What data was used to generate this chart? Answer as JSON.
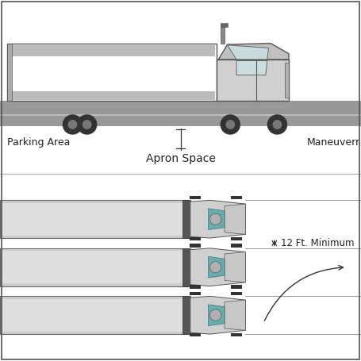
{
  "bg_color": "#ffffff",
  "road_color": "#999999",
  "trailer_fill": "#e8e8e8",
  "trailer_stroke": "#555555",
  "cab_fill": "#d8d8d8",
  "text_color": "#222222",
  "label_parking": "Parking Area",
  "label_maneuver": "Maneuver",
  "label_apron": "Apron Space",
  "label_12ft": "12 Ft. Minimum",
  "wheel_color": "#333333",
  "dock_trailer_fill": "#cccccc",
  "dock_line_color": "#888888",
  "teal_color": "#55aaaa",
  "separator_line_color": "#aaaaaa"
}
